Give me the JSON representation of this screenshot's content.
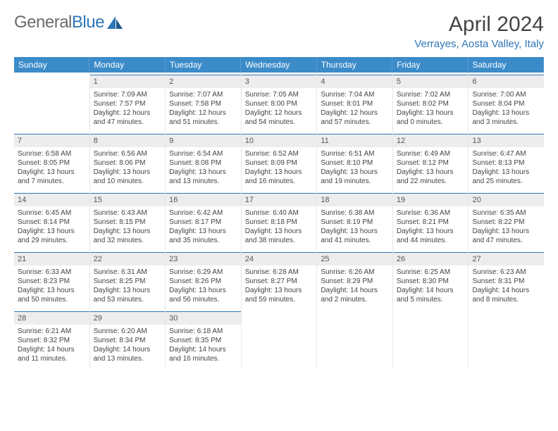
{
  "logo": {
    "word1": "General",
    "word2": "Blue"
  },
  "title": "April 2024",
  "location": "Verrayes, Aosta Valley, Italy",
  "colors": {
    "header_bg": "#3b8bc9",
    "accent": "#2e75b6",
    "daynum_bg": "#ededed",
    "text": "#444444",
    "logo_gray": "#6b6b6b"
  },
  "day_names": [
    "Sunday",
    "Monday",
    "Tuesday",
    "Wednesday",
    "Thursday",
    "Friday",
    "Saturday"
  ],
  "weeks": [
    [
      {
        "blank": true
      },
      {
        "n": "1",
        "sunrise": "7:09 AM",
        "sunset": "7:57 PM",
        "dl1": "Daylight: 12 hours",
        "dl2": "and 47 minutes."
      },
      {
        "n": "2",
        "sunrise": "7:07 AM",
        "sunset": "7:58 PM",
        "dl1": "Daylight: 12 hours",
        "dl2": "and 51 minutes."
      },
      {
        "n": "3",
        "sunrise": "7:05 AM",
        "sunset": "8:00 PM",
        "dl1": "Daylight: 12 hours",
        "dl2": "and 54 minutes."
      },
      {
        "n": "4",
        "sunrise": "7:04 AM",
        "sunset": "8:01 PM",
        "dl1": "Daylight: 12 hours",
        "dl2": "and 57 minutes."
      },
      {
        "n": "5",
        "sunrise": "7:02 AM",
        "sunset": "8:02 PM",
        "dl1": "Daylight: 13 hours",
        "dl2": "and 0 minutes."
      },
      {
        "n": "6",
        "sunrise": "7:00 AM",
        "sunset": "8:04 PM",
        "dl1": "Daylight: 13 hours",
        "dl2": "and 3 minutes."
      }
    ],
    [
      {
        "n": "7",
        "sunrise": "6:58 AM",
        "sunset": "8:05 PM",
        "dl1": "Daylight: 13 hours",
        "dl2": "and 7 minutes."
      },
      {
        "n": "8",
        "sunrise": "6:56 AM",
        "sunset": "8:06 PM",
        "dl1": "Daylight: 13 hours",
        "dl2": "and 10 minutes."
      },
      {
        "n": "9",
        "sunrise": "6:54 AM",
        "sunset": "8:08 PM",
        "dl1": "Daylight: 13 hours",
        "dl2": "and 13 minutes."
      },
      {
        "n": "10",
        "sunrise": "6:52 AM",
        "sunset": "8:09 PM",
        "dl1": "Daylight: 13 hours",
        "dl2": "and 16 minutes."
      },
      {
        "n": "11",
        "sunrise": "6:51 AM",
        "sunset": "8:10 PM",
        "dl1": "Daylight: 13 hours",
        "dl2": "and 19 minutes."
      },
      {
        "n": "12",
        "sunrise": "6:49 AM",
        "sunset": "8:12 PM",
        "dl1": "Daylight: 13 hours",
        "dl2": "and 22 minutes."
      },
      {
        "n": "13",
        "sunrise": "6:47 AM",
        "sunset": "8:13 PM",
        "dl1": "Daylight: 13 hours",
        "dl2": "and 25 minutes."
      }
    ],
    [
      {
        "n": "14",
        "sunrise": "6:45 AM",
        "sunset": "8:14 PM",
        "dl1": "Daylight: 13 hours",
        "dl2": "and 29 minutes."
      },
      {
        "n": "15",
        "sunrise": "6:43 AM",
        "sunset": "8:15 PM",
        "dl1": "Daylight: 13 hours",
        "dl2": "and 32 minutes."
      },
      {
        "n": "16",
        "sunrise": "6:42 AM",
        "sunset": "8:17 PM",
        "dl1": "Daylight: 13 hours",
        "dl2": "and 35 minutes."
      },
      {
        "n": "17",
        "sunrise": "6:40 AM",
        "sunset": "8:18 PM",
        "dl1": "Daylight: 13 hours",
        "dl2": "and 38 minutes."
      },
      {
        "n": "18",
        "sunrise": "6:38 AM",
        "sunset": "8:19 PM",
        "dl1": "Daylight: 13 hours",
        "dl2": "and 41 minutes."
      },
      {
        "n": "19",
        "sunrise": "6:36 AM",
        "sunset": "8:21 PM",
        "dl1": "Daylight: 13 hours",
        "dl2": "and 44 minutes."
      },
      {
        "n": "20",
        "sunrise": "6:35 AM",
        "sunset": "8:22 PM",
        "dl1": "Daylight: 13 hours",
        "dl2": "and 47 minutes."
      }
    ],
    [
      {
        "n": "21",
        "sunrise": "6:33 AM",
        "sunset": "8:23 PM",
        "dl1": "Daylight: 13 hours",
        "dl2": "and 50 minutes."
      },
      {
        "n": "22",
        "sunrise": "6:31 AM",
        "sunset": "8:25 PM",
        "dl1": "Daylight: 13 hours",
        "dl2": "and 53 minutes."
      },
      {
        "n": "23",
        "sunrise": "6:29 AM",
        "sunset": "8:26 PM",
        "dl1": "Daylight: 13 hours",
        "dl2": "and 56 minutes."
      },
      {
        "n": "24",
        "sunrise": "6:28 AM",
        "sunset": "8:27 PM",
        "dl1": "Daylight: 13 hours",
        "dl2": "and 59 minutes."
      },
      {
        "n": "25",
        "sunrise": "6:26 AM",
        "sunset": "8:29 PM",
        "dl1": "Daylight: 14 hours",
        "dl2": "and 2 minutes."
      },
      {
        "n": "26",
        "sunrise": "6:25 AM",
        "sunset": "8:30 PM",
        "dl1": "Daylight: 14 hours",
        "dl2": "and 5 minutes."
      },
      {
        "n": "27",
        "sunrise": "6:23 AM",
        "sunset": "8:31 PM",
        "dl1": "Daylight: 14 hours",
        "dl2": "and 8 minutes."
      }
    ],
    [
      {
        "n": "28",
        "sunrise": "6:21 AM",
        "sunset": "8:32 PM",
        "dl1": "Daylight: 14 hours",
        "dl2": "and 11 minutes."
      },
      {
        "n": "29",
        "sunrise": "6:20 AM",
        "sunset": "8:34 PM",
        "dl1": "Daylight: 14 hours",
        "dl2": "and 13 minutes."
      },
      {
        "n": "30",
        "sunrise": "6:18 AM",
        "sunset": "8:35 PM",
        "dl1": "Daylight: 14 hours",
        "dl2": "and 16 minutes."
      },
      {
        "blank": true
      },
      {
        "blank": true
      },
      {
        "blank": true
      },
      {
        "blank": true
      }
    ]
  ],
  "labels": {
    "sunrise_prefix": "Sunrise: ",
    "sunset_prefix": "Sunset: "
  }
}
